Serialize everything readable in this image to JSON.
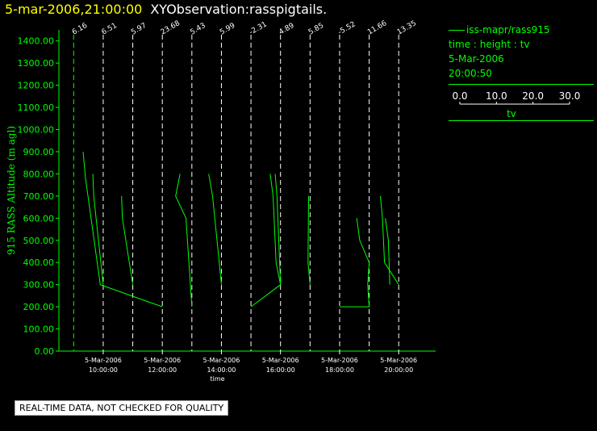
{
  "header": {
    "timestamp": "5-mar-2006,21:00:00",
    "observation": "XYObservation:rasspigtails."
  },
  "legend": {
    "series": "iss-mapr/rass915",
    "desc": "time : height : tv",
    "date": "5-Mar-2006",
    "time": "20:00:50",
    "scale_ticks": [
      "0.0",
      "10.0",
      "20.0",
      "30.0"
    ],
    "scale_label": "tv"
  },
  "notice": "REAL-TIME DATA, NOT CHECKED FOR QUALITY",
  "colors": {
    "axis": "#00ff00",
    "data": "#00ff00",
    "title": "#ffff00",
    "background": "#000000",
    "profile_lines": "#ffffff"
  },
  "chart_data": {
    "type": "line",
    "title": "",
    "xlabel": "time",
    "ylabel": "915 RASS Altitude (m agl)",
    "xlim": [
      8.5,
      21.25
    ],
    "ylim": [
      0,
      1450
    ],
    "yticks": [
      "0.00",
      "100.00",
      "200.00",
      "300.00",
      "400.00",
      "500.00",
      "600.00",
      "700.00",
      "800.00",
      "900.00",
      "1000.00",
      "1100.00",
      "1200.00",
      "1300.00",
      "1400.00"
    ],
    "xticks": [
      {
        "t": 10,
        "date": "5-Mar-2006",
        "time": "10:00:00"
      },
      {
        "t": 12,
        "date": "5-Mar-2006",
        "time": "12:00:00"
      },
      {
        "t": 14,
        "date": "5-Mar-2006",
        "time": "14:00:00"
      },
      {
        "t": 16,
        "date": "5-Mar-2006",
        "time": "16:00:00"
      },
      {
        "t": 18,
        "date": "5-Mar-2006",
        "time": "18:00:00"
      },
      {
        "t": 20,
        "date": "5-Mar-2006",
        "time": "20:00:00"
      }
    ],
    "profiles": [
      {
        "t": 9.0,
        "label": "6.16"
      },
      {
        "t": 10.0,
        "label": "6.51"
      },
      {
        "t": 11.0,
        "label": "5.97"
      },
      {
        "t": 12.0,
        "label": "23.68"
      },
      {
        "t": 13.0,
        "label": "5.43"
      },
      {
        "t": 14.0,
        "label": "5.99"
      },
      {
        "t": 15.0,
        "label": "-2.31"
      },
      {
        "t": 16.0,
        "label": "4.89"
      },
      {
        "t": 17.0,
        "label": "5.85"
      },
      {
        "t": 18.0,
        "label": "-5.52"
      },
      {
        "t": 19.0,
        "label": "11.66"
      },
      {
        "t": 20.0,
        "label": "13.35"
      }
    ],
    "series": [
      {
        "points": [
          [
            9.32,
            900
          ],
          [
            9.4,
            780
          ],
          [
            9.9,
            300
          ],
          [
            12.0,
            200
          ]
        ]
      },
      {
        "points": [
          [
            9.65,
            800
          ],
          [
            9.68,
            700
          ],
          [
            10.0,
            300
          ]
        ]
      },
      {
        "points": [
          [
            10.62,
            700
          ],
          [
            10.65,
            600
          ],
          [
            11.0,
            300
          ]
        ]
      },
      {
        "points": [
          [
            12.6,
            800
          ],
          [
            12.45,
            700
          ],
          [
            12.8,
            600
          ],
          [
            13.0,
            200
          ]
        ]
      },
      {
        "points": [
          [
            13.57,
            800
          ],
          [
            13.7,
            700
          ],
          [
            14.0,
            300
          ]
        ]
      },
      {
        "points": [
          [
            15.65,
            800
          ],
          [
            15.75,
            700
          ],
          [
            15.85,
            400
          ],
          [
            16.0,
            300
          ]
        ]
      },
      {
        "points": [
          [
            15.82,
            800
          ],
          [
            15.88,
            700
          ],
          [
            16.0,
            300
          ],
          [
            15.0,
            200
          ]
        ]
      },
      {
        "points": [
          [
            16.95,
            700
          ],
          [
            16.93,
            400
          ],
          [
            17.0,
            300
          ]
        ]
      },
      {
        "points": [
          [
            18.58,
            600
          ],
          [
            18.68,
            500
          ],
          [
            19.0,
            400
          ],
          [
            18.95,
            300
          ],
          [
            19.0,
            200
          ],
          [
            18.0,
            200
          ]
        ]
      },
      {
        "points": [
          [
            19.38,
            700
          ],
          [
            19.45,
            600
          ],
          [
            19.52,
            400
          ],
          [
            20.0,
            300
          ]
        ]
      },
      {
        "points": [
          [
            19.55,
            600
          ],
          [
            19.65,
            500
          ],
          [
            19.7,
            300
          ]
        ]
      }
    ]
  }
}
